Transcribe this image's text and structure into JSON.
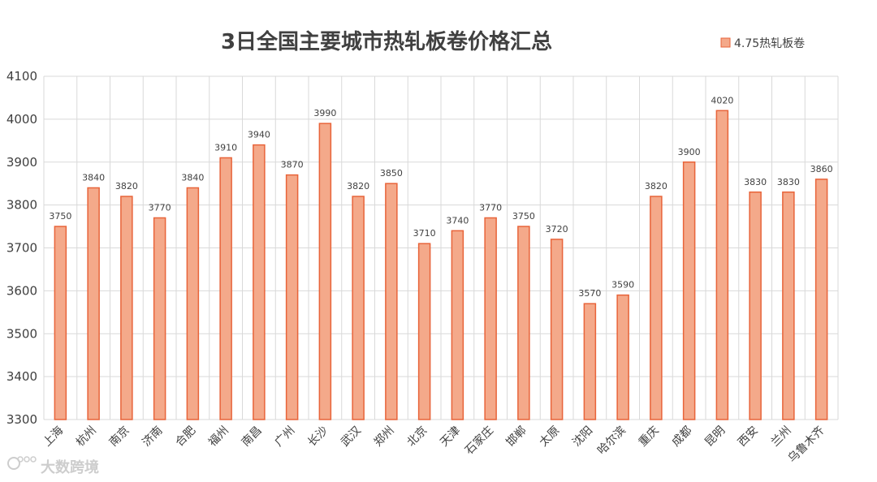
{
  "chart_data": {
    "type": "bar",
    "title": "3日全国主要城市热轧板卷价格汇总",
    "xlabel": "",
    "ylabel": "",
    "ylim": [
      3300,
      4100
    ],
    "yticks": [
      3300,
      3400,
      3500,
      3600,
      3700,
      3800,
      3900,
      4000,
      4100
    ],
    "grid": true,
    "legend_position": "top-right",
    "categories": [
      "上海",
      "杭州",
      "南京",
      "济南",
      "合肥",
      "福州",
      "南昌",
      "广州",
      "长沙",
      "武汉",
      "郑州",
      "北京",
      "天津",
      "石家庄",
      "邯郸",
      "太原",
      "沈阳",
      "哈尔滨",
      "重庆",
      "成都",
      "昆明",
      "西安",
      "兰州",
      "乌鲁木齐"
    ],
    "series": [
      {
        "name": "4.75热轧板卷",
        "color": "#f4a98a",
        "edge_color": "#e8643a",
        "values": [
          3750,
          3840,
          3820,
          3770,
          3840,
          3910,
          3940,
          3870,
          3990,
          3820,
          3850,
          3710,
          3740,
          3770,
          3750,
          3720,
          3570,
          3590,
          3820,
          3900,
          4020,
          3830,
          3830,
          3860
        ]
      }
    ]
  },
  "watermark": {
    "text": "大数跨境",
    "icon": "weibo-like-logo-icon"
  }
}
